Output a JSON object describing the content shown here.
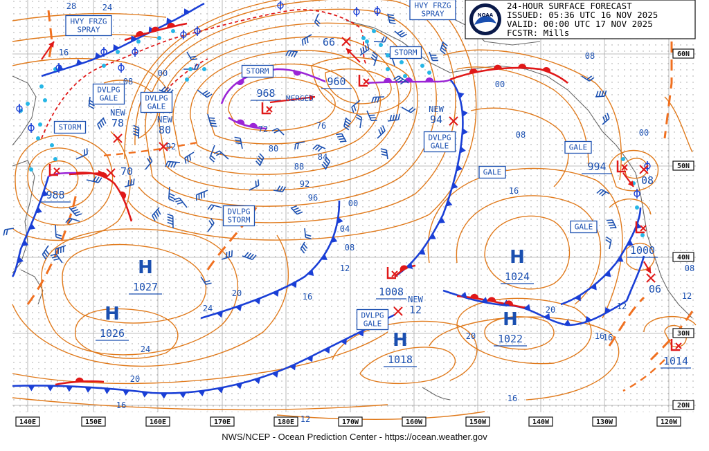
{
  "header": {
    "title": "24-HOUR SURFACE FORECAST",
    "issued": "ISSUED: 05:36 UTC 16 NOV 2025",
    "valid": "VALID:  00:00 UTC 17 NOV 2025",
    "forecaster": "FCSTR:  Mills"
  },
  "logo_text": "NOAA",
  "footer": "NWS/NCEP - Ocean Prediction Center - https://ocean.weather.gov",
  "longitude_labels": [
    "140E",
    "150E",
    "160E",
    "170E",
    "180E",
    "170W",
    "160W",
    "150W",
    "140W",
    "130W",
    "120W"
  ],
  "latitude_labels": [
    "60N",
    "50N",
    "40N",
    "30N",
    "20N"
  ],
  "colors": {
    "cold_front": "#1a3fd6",
    "warm_front": "#e01818",
    "occluded": "#9b25d6",
    "isobar": "#e07a1c",
    "text": "#1a4fb0",
    "low": "#e01818"
  },
  "highs": [
    {
      "label": "H",
      "pressure": "1027"
    },
    {
      "label": "H",
      "pressure": "1026"
    },
    {
      "label": "H",
      "pressure": "1018"
    },
    {
      "label": "H",
      "pressure": "1024"
    },
    {
      "label": "H",
      "pressure": "1022"
    }
  ],
  "lows": [
    {
      "pressure": "988"
    },
    {
      "pressure": "968"
    },
    {
      "pressure": "960"
    },
    {
      "pressure": "1008"
    },
    {
      "pressure": "994"
    },
    {
      "pressure": "1000"
    },
    {
      "pressure": "1014"
    }
  ],
  "forecast_positions": [
    {
      "pressure": "70"
    },
    {
      "pressure": "66"
    },
    {
      "pressure": "78",
      "tag": "NEW"
    },
    {
      "pressure": "80",
      "tag": "NEW"
    },
    {
      "pressure": "94",
      "tag": "NEW"
    },
    {
      "pressure": "12",
      "tag": "NEW"
    },
    {
      "pressure": "08"
    },
    {
      "pressure": "06"
    }
  ],
  "warning_labels": [
    {
      "lines": [
        "HVY FRZG",
        "SPRAY"
      ]
    },
    {
      "lines": [
        "HVY FRZG",
        "SPRAY"
      ]
    },
    {
      "lines": [
        "STORM"
      ]
    },
    {
      "lines": [
        "STORM"
      ]
    },
    {
      "lines": [
        "STORM"
      ]
    },
    {
      "lines": [
        "DVLPG",
        "GALE"
      ]
    },
    {
      "lines": [
        "DVLPG",
        "GALE"
      ]
    },
    {
      "lines": [
        "DVLPG",
        "GALE"
      ]
    },
    {
      "lines": [
        "DVLPG",
        "GALE"
      ]
    },
    {
      "lines": [
        "DVLPG",
        "STORM"
      ]
    },
    {
      "lines": [
        "GALE"
      ]
    },
    {
      "lines": [
        "GALE"
      ]
    },
    {
      "lines": [
        "GALE"
      ]
    }
  ],
  "merged_label": "MERGED",
  "isobar_labels": [
    "28",
    "24",
    "16",
    "08",
    "00",
    "92",
    "72",
    "76",
    "80",
    "84",
    "88",
    "92",
    "96",
    "00",
    "04",
    "08",
    "12",
    "16",
    "20",
    "24",
    "24",
    "20",
    "16",
    "20",
    "16",
    "12",
    "16",
    "08",
    "00",
    "08",
    "16",
    "20",
    "12",
    "16",
    "12",
    "08",
    "00"
  ]
}
